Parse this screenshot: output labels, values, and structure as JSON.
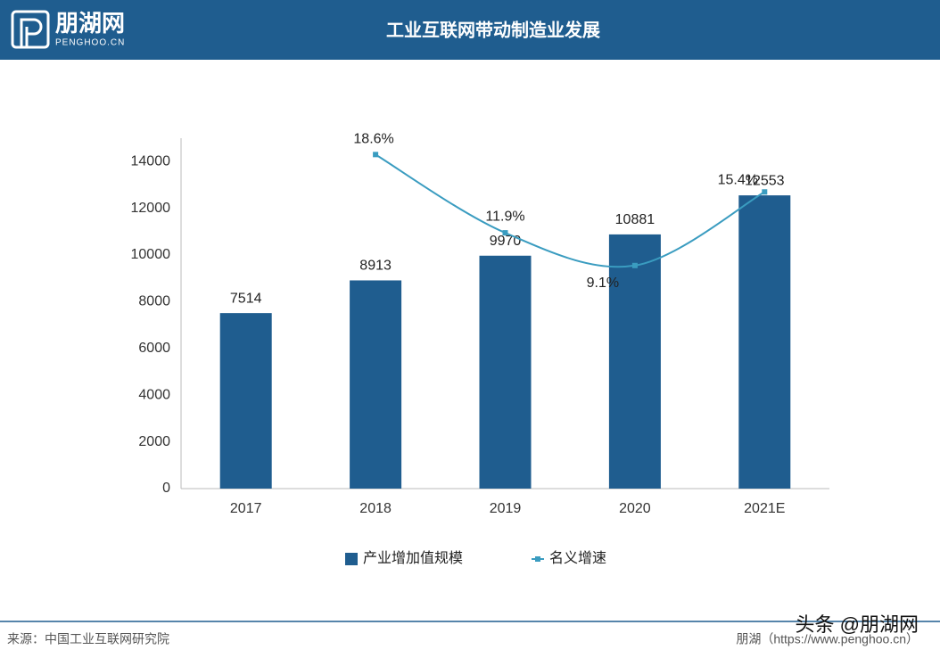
{
  "header": {
    "logo": "朋湖网",
    "logo_sub": "PENGHOO.CN",
    "title": "工业互联网带动制造业发展"
  },
  "chart_data": {
    "type": "combo",
    "categories": [
      "2017",
      "2018",
      "2019",
      "2020",
      "2021E"
    ],
    "series": [
      {
        "name": "产业增加值规模",
        "type": "bar",
        "color": "#1f5d8f",
        "values": [
          7514,
          8913,
          9970,
          10881,
          12553
        ]
      },
      {
        "name": "名义增速",
        "type": "line",
        "axis": "y2",
        "color": "#3a9cc0",
        "values": [
          null,
          18.6,
          11.9,
          9.1,
          15.4
        ],
        "value_labels": [
          null,
          "18.6%",
          "11.9%",
          "9.1%",
          "15.4%"
        ]
      }
    ],
    "ylim": [
      0,
      15000
    ],
    "yticks": [
      0,
      2000,
      4000,
      6000,
      8000,
      10000,
      12000,
      14000
    ],
    "y2lim": [
      -10,
      20
    ],
    "legend": "bottom",
    "grid": false
  },
  "footer": {
    "source": "来源：中国工业互联网研究院",
    "site": "朋湖（https://www.penghoo.cn）",
    "watermark": "头条 @朋湖网"
  }
}
